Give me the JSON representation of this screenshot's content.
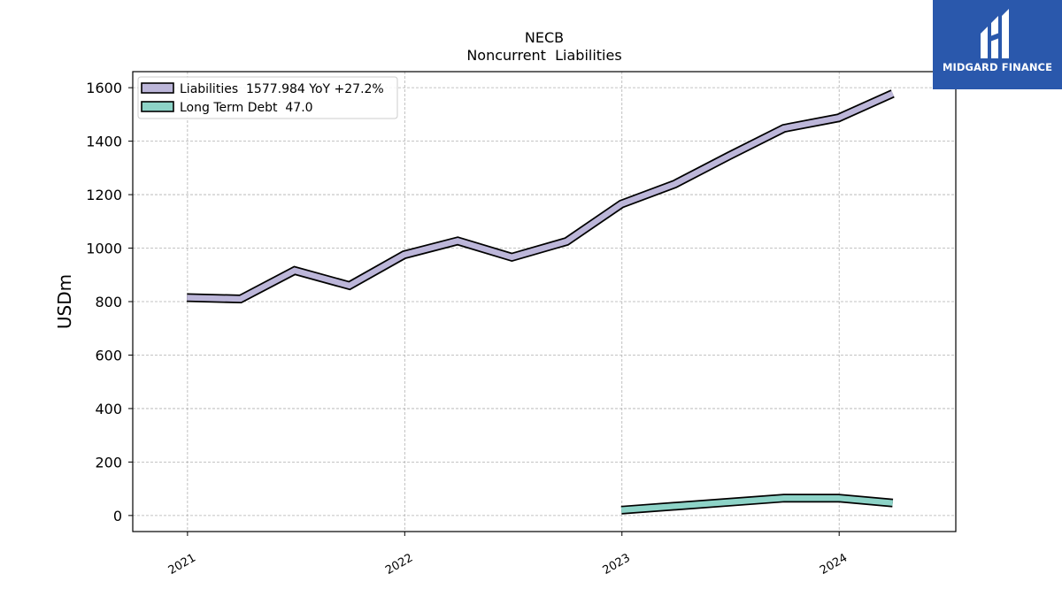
{
  "brand": {
    "name": "MIDGARD FINANCE",
    "bg_color": "#2a58ac",
    "icon": "midgard-logo-icon"
  },
  "chart_data": {
    "type": "line",
    "title": "NECB",
    "subtitle": "Noncurrent  Liabilities",
    "xlabel": "",
    "ylabel": "USDm",
    "xlim": [
      "2020-10-01",
      "2024-07-15"
    ],
    "ylim": [
      -60,
      1660
    ],
    "yticks": [
      0,
      200,
      400,
      600,
      800,
      1000,
      1200,
      1400,
      1600
    ],
    "xticks": [
      {
        "date": "2021-01-01",
        "label": "2021"
      },
      {
        "date": "2022-01-01",
        "label": "2022"
      },
      {
        "date": "2023-01-01",
        "label": "2023"
      },
      {
        "date": "2024-01-01",
        "label": "2024"
      }
    ],
    "grid": true,
    "legend_position": "top-left",
    "series": [
      {
        "name": "Liabilities",
        "legend_label": "Liabilities  1577.984 YoY +27.2%",
        "color": "#bcb6d9",
        "points": [
          {
            "x": "2020-12-31",
            "y": 815
          },
          {
            "x": "2021-03-31",
            "y": 810
          },
          {
            "x": "2021-06-30",
            "y": 916
          },
          {
            "x": "2021-09-30",
            "y": 860
          },
          {
            "x": "2021-12-31",
            "y": 975
          },
          {
            "x": "2022-03-31",
            "y": 1027
          },
          {
            "x": "2022-06-30",
            "y": 966
          },
          {
            "x": "2022-09-30",
            "y": 1025
          },
          {
            "x": "2022-12-31",
            "y": 1165
          },
          {
            "x": "2023-03-31",
            "y": 1240
          },
          {
            "x": "2023-06-30",
            "y": 1345
          },
          {
            "x": "2023-09-30",
            "y": 1448
          },
          {
            "x": "2023-12-31",
            "y": 1487
          },
          {
            "x": "2024-03-31",
            "y": 1578
          }
        ]
      },
      {
        "name": "Long Term Debt",
        "legend_label": "Long Term Debt  47.0",
        "color": "#8dd3c7",
        "points": [
          {
            "x": "2022-12-31",
            "y": 20
          },
          {
            "x": "2023-09-30",
            "y": 65
          },
          {
            "x": "2023-12-31",
            "y": 65
          },
          {
            "x": "2024-03-31",
            "y": 47
          }
        ]
      }
    ]
  }
}
